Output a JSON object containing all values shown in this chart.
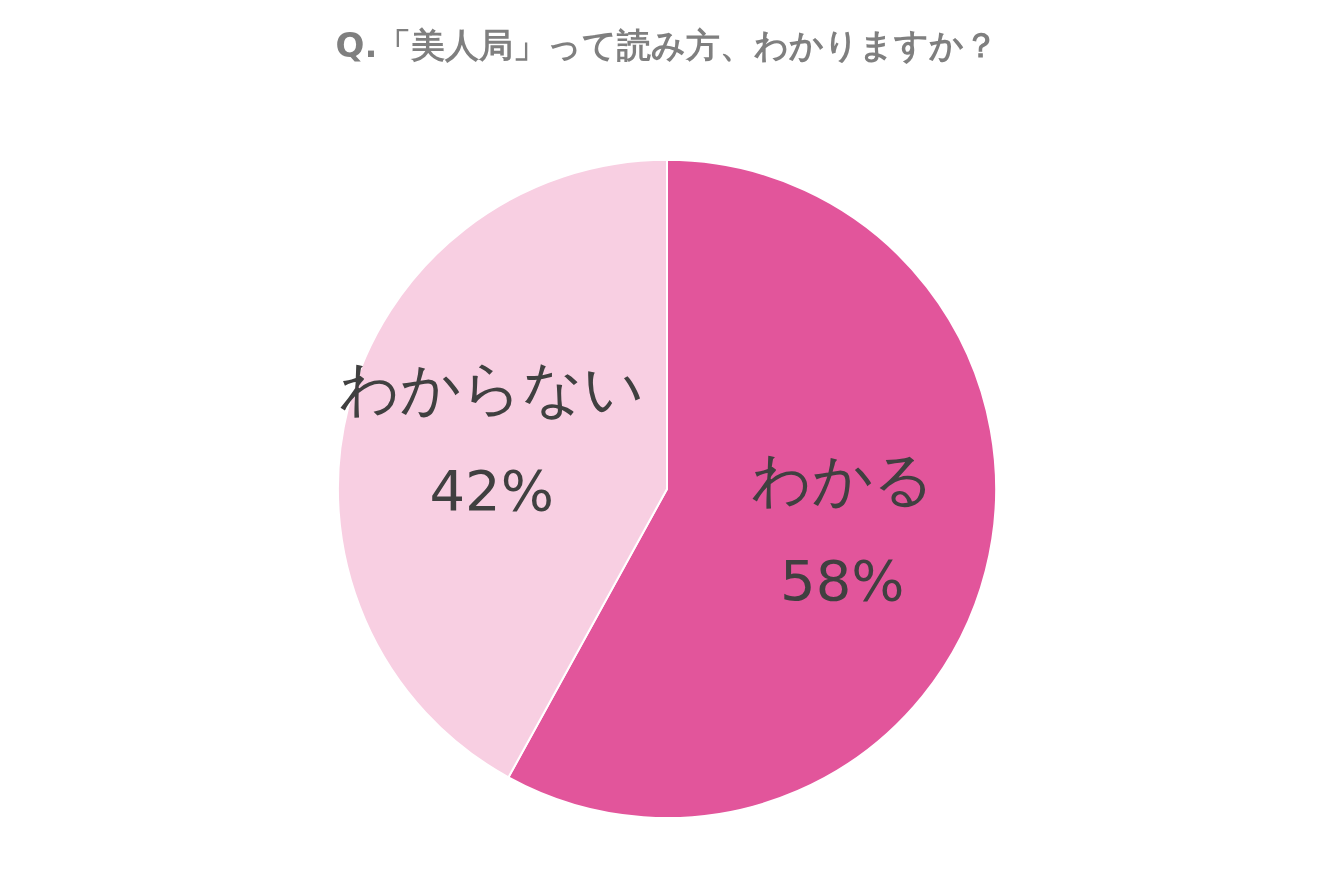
{
  "chart_data": {
    "type": "pie",
    "title": "Q.「美人局」って読み方、わかりますか？",
    "categories": [
      "わかる",
      "わからない"
    ],
    "values": [
      58,
      42
    ],
    "colors": [
      "#e2559b",
      "#f8cfe2"
    ],
    "value_labels": [
      "58%",
      "42%"
    ],
    "legend": false
  }
}
